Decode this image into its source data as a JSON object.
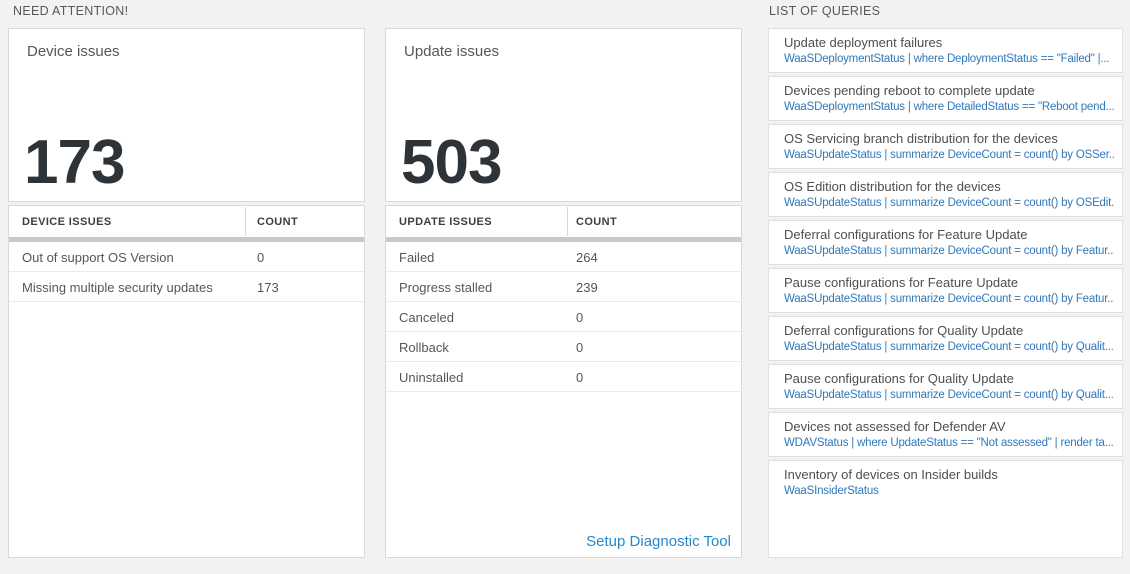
{
  "colors": {
    "background": "#f2f2f2",
    "card_border": "#d9d9d9",
    "accent_link_blue": "#2688cc",
    "query_code_blue": "#2e79bd",
    "count_text": "#2e3338",
    "thick_bar_gray": "#c9c9c9"
  },
  "need_attention": {
    "section_title": "NEED ATTENTION!",
    "cards": [
      {
        "title": "Device issues",
        "count": "173",
        "table": {
          "headers": [
            "DEVICE ISSUES",
            "COUNT"
          ],
          "rows": [
            [
              "Out of support OS Version",
              "0"
            ],
            [
              "Missing multiple security updates",
              "173"
            ]
          ]
        }
      },
      {
        "title": "Update issues",
        "count": "503",
        "table": {
          "headers": [
            "UPDATE ISSUES",
            "COUNT"
          ],
          "rows": [
            [
              "Failed",
              "264"
            ],
            [
              "Progress stalled",
              "239"
            ],
            [
              "Canceled",
              "0"
            ],
            [
              "Rollback",
              "0"
            ],
            [
              "Uninstalled",
              "0"
            ]
          ]
        },
        "footer_link": "Setup Diagnostic Tool"
      }
    ]
  },
  "queries": {
    "section_title": "LIST OF QUERIES",
    "items": [
      {
        "title": "Update deployment failures",
        "query": "WaaSDeploymentStatus | where DeploymentStatus == \"Failed\" |..."
      },
      {
        "title": "Devices pending reboot to complete update",
        "query": "WaaSDeploymentStatus | where DetailedStatus == \"Reboot pend..."
      },
      {
        "title": "OS Servicing branch distribution for the devices",
        "query": "WaaSUpdateStatus | summarize DeviceCount = count() by OSSer..."
      },
      {
        "title": "OS Edition distribution for the devices",
        "query": "WaaSUpdateStatus | summarize DeviceCount = count() by OSEdit..."
      },
      {
        "title": "Deferral configurations for Feature Update",
        "query": "WaaSUpdateStatus | summarize DeviceCount = count() by Featur..."
      },
      {
        "title": "Pause configurations for Feature Update",
        "query": "WaaSUpdateStatus | summarize DeviceCount = count() by Featur..."
      },
      {
        "title": "Deferral configurations for Quality Update",
        "query": "WaaSUpdateStatus | summarize DeviceCount = count() by Qualit..."
      },
      {
        "title": "Pause configurations for Quality Update",
        "query": "WaaSUpdateStatus | summarize DeviceCount = count() by Qualit..."
      },
      {
        "title": "Devices not assessed for Defender AV",
        "query": "WDAVStatus | where UpdateStatus == \"Not assessed\" | render ta..."
      },
      {
        "title": "Inventory of devices on Insider builds",
        "query": "WaaSInsiderStatus"
      }
    ]
  }
}
